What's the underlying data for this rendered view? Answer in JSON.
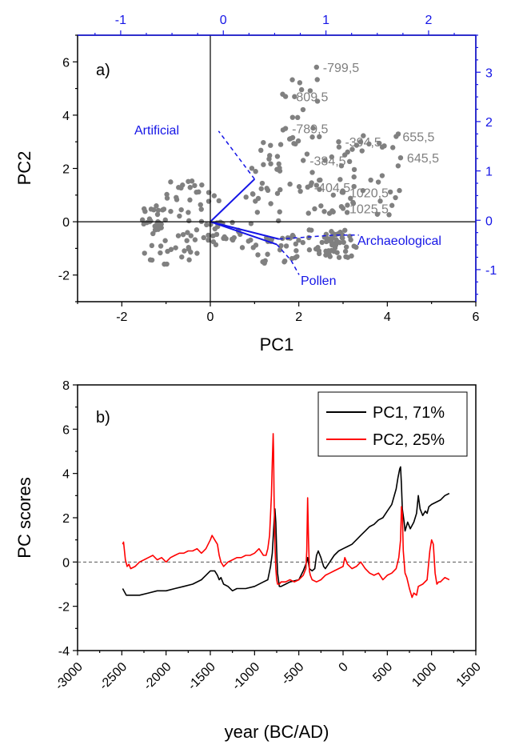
{
  "chart_data": [
    {
      "type": "scatter",
      "panel_label": "a)",
      "xlabel": "PC1",
      "ylabel": "PC2",
      "xlim": [
        -3,
        6
      ],
      "ylim": [
        -3,
        7
      ],
      "x_ticks": [
        -2,
        0,
        2,
        4,
        6
      ],
      "y_ticks": [
        -2,
        0,
        2,
        4,
        6
      ],
      "top_axis": {
        "lim": [
          -1.42,
          2.46
        ],
        "ticks": [
          -1,
          0,
          1,
          2
        ],
        "color": "#1515e6"
      },
      "right_axis": {
        "lim": [
          -1.65,
          3.75
        ],
        "ticks": [
          -1,
          0,
          1,
          2,
          3
        ],
        "color": "#1515e6"
      },
      "point_color": "#808080",
      "vector_color": "#1515e6",
      "point_labels": [
        {
          "text": "-799,5",
          "x": 2.4,
          "y": 5.8
        },
        {
          "text": "-809,5",
          "x": 1.7,
          "y": 4.7
        },
        {
          "text": "-789,5",
          "x": 1.7,
          "y": 3.5
        },
        {
          "text": "-394,5",
          "x": 2.9,
          "y": 3.0
        },
        {
          "text": "-384,5",
          "x": 2.1,
          "y": 2.3
        },
        {
          "text": "655,5",
          "x": 4.2,
          "y": 3.2
        },
        {
          "text": "645,5",
          "x": 4.3,
          "y": 2.4
        },
        {
          "text": "-404,5",
          "x": 2.2,
          "y": 1.3
        },
        {
          "text": "1020,5",
          "x": 3.0,
          "y": 1.1
        },
        {
          "text": "1025,5",
          "x": 3.0,
          "y": 0.5
        }
      ],
      "vectors": [
        {
          "name": "Artificial",
          "x": 1.0,
          "y": 1.6
        },
        {
          "name": "Archaeological",
          "x": 1.55,
          "y": -0.65
        },
        {
          "name": "Pollen",
          "x": 1.5,
          "y": -0.85
        }
      ],
      "scatter_clusters": [
        {
          "x": [
            -1.6,
            -1.0
          ],
          "y": [
            -0.4,
            0.6
          ]
        },
        {
          "x": [
            -1.0,
            0.2
          ],
          "y": [
            0.0,
            1.6
          ]
        },
        {
          "x": [
            -1.5,
            0.0
          ],
          "y": [
            -1.6,
            -0.3
          ]
        },
        {
          "x": [
            -0.2,
            1.0
          ],
          "y": [
            -1.0,
            0.0
          ]
        },
        {
          "x": [
            1.0,
            2.2
          ],
          "y": [
            -1.6,
            -0.5
          ]
        },
        {
          "x": [
            2.2,
            3.0
          ],
          "y": [
            -1.2,
            -0.3
          ]
        },
        {
          "x": [
            2.6,
            3.3
          ],
          "y": [
            -1.4,
            -0.3
          ]
        },
        {
          "x": [
            1.5,
            2.5
          ],
          "y": [
            1.0,
            5.5
          ]
        },
        {
          "x": [
            2.0,
            3.3
          ],
          "y": [
            0.3,
            3.0
          ]
        },
        {
          "x": [
            3.0,
            4.4
          ],
          "y": [
            0.2,
            3.3
          ]
        },
        {
          "x": [
            0.8,
            1.6
          ],
          "y": [
            0.0,
            3.0
          ]
        }
      ]
    },
    {
      "type": "line",
      "panel_label": "b)",
      "xlabel": "year (BC/AD)",
      "ylabel": "PC scores",
      "xlim": [
        -3000,
        1500
      ],
      "ylim": [
        -4,
        8
      ],
      "x_ticks": [
        -3000,
        -2500,
        -2000,
        -1500,
        -1000,
        -500,
        0,
        500,
        1000,
        1500
      ],
      "y_ticks": [
        -4,
        -2,
        0,
        2,
        4,
        6,
        8
      ],
      "reference_line": 0,
      "series": [
        {
          "name": "PC1, 71%",
          "color": "#000000",
          "x": [
            -2490,
            -2450,
            -2400,
            -2300,
            -2200,
            -2100,
            -2000,
            -1900,
            -1800,
            -1700,
            -1600,
            -1550,
            -1500,
            -1450,
            -1420,
            -1400,
            -1380,
            -1350,
            -1300,
            -1250,
            -1200,
            -1100,
            -1000,
            -900,
            -850,
            -820,
            -800,
            -780,
            -770,
            -760,
            -750,
            -740,
            -720,
            -700,
            -650,
            -600,
            -500,
            -450,
            -420,
            -400,
            -380,
            -350,
            -320,
            -300,
            -280,
            -250,
            -220,
            -200,
            -150,
            -100,
            -50,
            0,
            50,
            100,
            150,
            200,
            250,
            300,
            350,
            400,
            450,
            500,
            550,
            600,
            620,
            640,
            650,
            660,
            670,
            690,
            700,
            730,
            760,
            800,
            830,
            850,
            870,
            900,
            930,
            950,
            970,
            1000,
            1050,
            1100,
            1150,
            1200
          ],
          "y": [
            -1.2,
            -1.5,
            -1.5,
            -1.5,
            -1.4,
            -1.3,
            -1.3,
            -1.2,
            -1.1,
            -1.0,
            -0.8,
            -0.6,
            -0.4,
            -0.4,
            -0.6,
            -0.8,
            -0.7,
            -1.0,
            -1.1,
            -1.3,
            -1.2,
            -1.2,
            -1.1,
            -0.9,
            -0.8,
            -0.2,
            0.4,
            1.8,
            2.4,
            1.8,
            0.5,
            -0.5,
            -1.1,
            -1.1,
            -1.0,
            -0.9,
            -0.8,
            -0.4,
            -0.1,
            0.2,
            -0.3,
            -0.4,
            -0.3,
            0.3,
            0.5,
            0.2,
            -0.2,
            -0.3,
            0.0,
            0.3,
            0.5,
            0.6,
            0.7,
            0.8,
            1.0,
            1.2,
            1.4,
            1.6,
            1.7,
            1.9,
            2.0,
            2.3,
            2.6,
            3.3,
            3.8,
            4.2,
            4.3,
            3.5,
            2.4,
            1.8,
            1.4,
            1.8,
            1.5,
            1.8,
            2.2,
            3.0,
            2.4,
            2.1,
            2.3,
            2.2,
            2.5,
            2.6,
            2.7,
            2.8,
            3.0,
            3.1
          ],
          "legend_position": "top-right"
        },
        {
          "name": "PC2, 25%",
          "color": "#ff0000",
          "x": [
            -2490,
            -2480,
            -2460,
            -2440,
            -2420,
            -2400,
            -2350,
            -2300,
            -2250,
            -2200,
            -2150,
            -2100,
            -2050,
            -2000,
            -1950,
            -1900,
            -1850,
            -1800,
            -1750,
            -1700,
            -1650,
            -1600,
            -1550,
            -1500,
            -1480,
            -1450,
            -1420,
            -1400,
            -1380,
            -1350,
            -1300,
            -1250,
            -1200,
            -1150,
            -1100,
            -1050,
            -1000,
            -950,
            -900,
            -870,
            -850,
            -830,
            -810,
            -800,
            -790,
            -785,
            -780,
            -770,
            -760,
            -750,
            -740,
            -720,
            -700,
            -650,
            -600,
            -550,
            -500,
            -450,
            -420,
            -410,
            -400,
            -390,
            -380,
            -370,
            -350,
            -300,
            -250,
            -200,
            -150,
            -100,
            -50,
            0,
            20,
            50,
            100,
            150,
            200,
            250,
            300,
            350,
            400,
            450,
            500,
            550,
            600,
            630,
            650,
            660,
            670,
            680,
            700,
            720,
            750,
            780,
            800,
            830,
            850,
            900,
            950,
            980,
            1000,
            1020,
            1040,
            1060,
            1080,
            1100,
            1150,
            1200
          ],
          "y": [
            0.8,
            0.9,
            0.1,
            -0.2,
            -0.1,
            -0.3,
            -0.2,
            0.0,
            0.1,
            0.2,
            0.3,
            0.1,
            0.2,
            0.0,
            0.2,
            0.3,
            0.4,
            0.4,
            0.5,
            0.5,
            0.6,
            0.4,
            0.6,
            1.0,
            1.2,
            1.0,
            0.8,
            0.3,
            0.0,
            -0.2,
            0.0,
            0.1,
            0.2,
            0.2,
            0.3,
            0.3,
            0.4,
            0.6,
            0.3,
            0.3,
            0.6,
            1.2,
            3.0,
            4.5,
            5.8,
            5.0,
            3.0,
            0.8,
            -0.3,
            -0.8,
            -1.0,
            -1.0,
            -0.9,
            -0.9,
            -0.8,
            -0.9,
            -0.8,
            -0.6,
            -0.3,
            0.5,
            2.9,
            1.0,
            -0.4,
            -0.6,
            -0.8,
            -0.9,
            -0.8,
            -0.6,
            -0.5,
            -0.4,
            -0.3,
            -0.2,
            0.2,
            -0.1,
            -0.3,
            -0.2,
            0.0,
            -0.3,
            -0.5,
            -0.6,
            -0.5,
            -0.8,
            -0.6,
            -0.5,
            -0.3,
            0.2,
            1.0,
            2.5,
            2.2,
            0.5,
            -0.5,
            -0.7,
            -1.2,
            -1.6,
            -1.4,
            -1.5,
            -1.1,
            -1.0,
            -0.8,
            0.5,
            1.0,
            0.8,
            -0.5,
            -1.0,
            -0.9,
            -0.9,
            -0.7,
            -0.8
          ]
        }
      ]
    }
  ]
}
